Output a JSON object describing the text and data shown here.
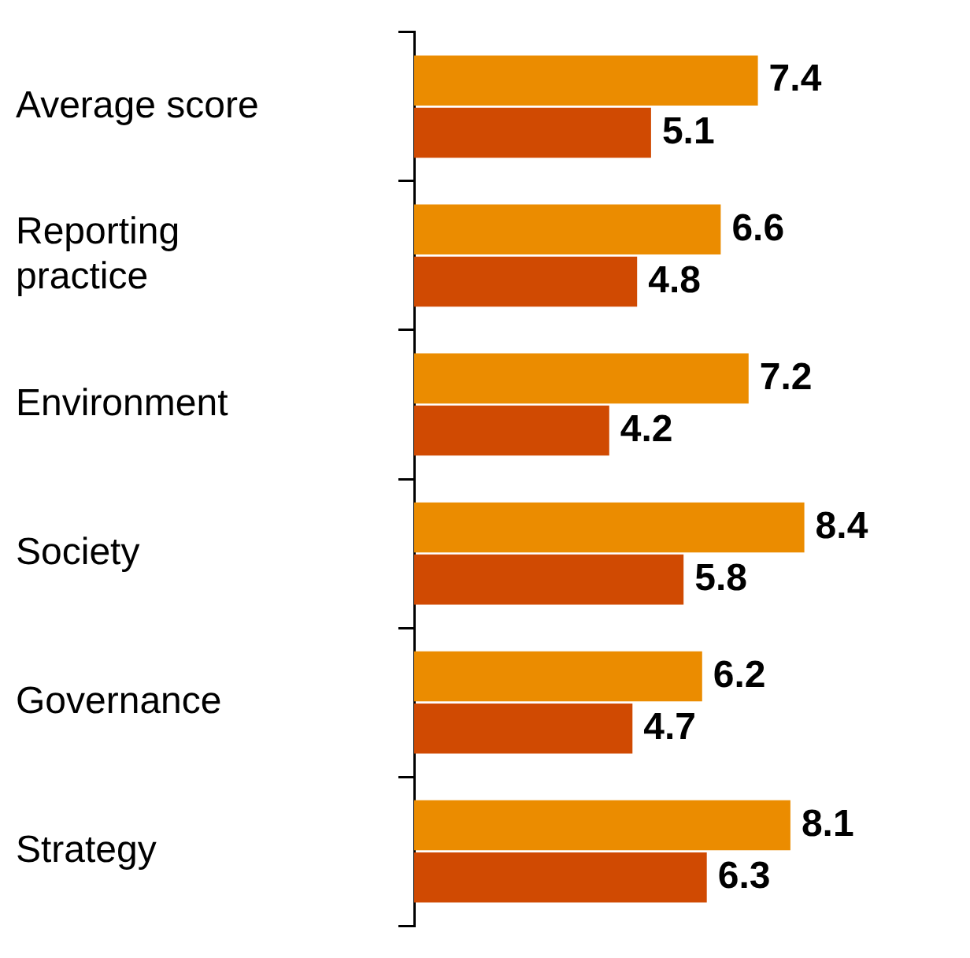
{
  "chart_data": {
    "type": "bar",
    "orientation": "horizontal",
    "categories": [
      "Average score",
      "Reporting practice",
      "Environment",
      "Society",
      "Governance",
      "Strategy"
    ],
    "series": [
      {
        "color": "#eb8c00",
        "values": [
          7.4,
          6.6,
          7.2,
          8.4,
          6.2,
          8.1
        ]
      },
      {
        "color": "#d04a02",
        "values": [
          5.1,
          4.8,
          4.2,
          5.8,
          4.7,
          6.3
        ]
      }
    ],
    "grid": false,
    "legend": false,
    "tick_labels": "y",
    "data_labels": true
  }
}
